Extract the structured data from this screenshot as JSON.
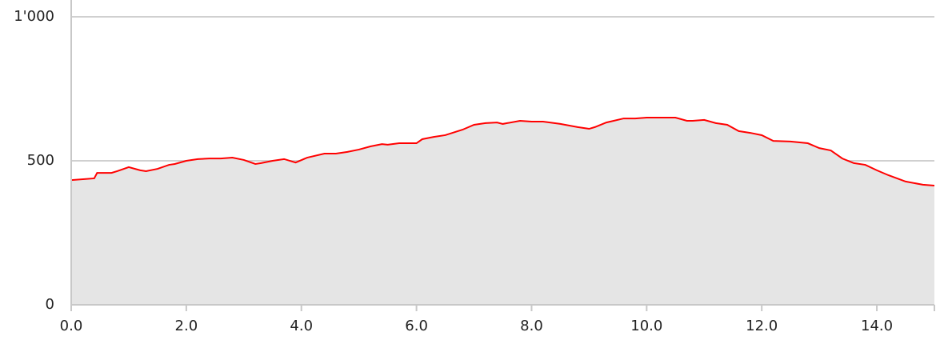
{
  "chart_data": {
    "type": "area",
    "x": [
      0,
      0.4,
      0.45,
      0.7,
      0.8,
      1.0,
      1.2,
      1.3,
      1.5,
      1.7,
      1.8,
      2.0,
      2.2,
      2.4,
      2.6,
      2.8,
      3.0,
      3.2,
      3.3,
      3.5,
      3.7,
      3.9,
      4.1,
      4.4,
      4.6,
      4.8,
      5.0,
      5.2,
      5.4,
      5.5,
      5.7,
      5.9,
      6.0,
      6.1,
      6.3,
      6.5,
      6.8,
      7.0,
      7.2,
      7.4,
      7.5,
      7.8,
      8.0,
      8.2,
      8.5,
      8.8,
      9.0,
      9.1,
      9.3,
      9.6,
      9.8,
      10.0,
      10.3,
      10.5,
      10.7,
      10.8,
      11.0,
      11.2,
      11.4,
      11.6,
      11.8,
      12.0,
      12.2,
      12.5,
      12.8,
      13.0,
      13.2,
      13.4,
      13.6,
      13.8,
      14.0,
      14.2,
      14.5,
      14.8,
      15.0
    ],
    "series": [
      {
        "color": "#ff0000",
        "fill": "#e5e5e5",
        "values": [
          433,
          439,
          458,
          458,
          464,
          478,
          467,
          464,
          472,
          486,
          489,
          500,
          506,
          508,
          508,
          511,
          503,
          489,
          492,
          500,
          506,
          494,
          511,
          525,
          525,
          531,
          539,
          550,
          558,
          556,
          561,
          561,
          561,
          575,
          583,
          589,
          608,
          625,
          631,
          633,
          628,
          639,
          636,
          636,
          628,
          617,
          611,
          617,
          633,
          647,
          647,
          650,
          650,
          650,
          639,
          639,
          642,
          631,
          625,
          603,
          597,
          589,
          569,
          567,
          561,
          544,
          536,
          508,
          492,
          486,
          467,
          450,
          428,
          417,
          414
        ]
      }
    ],
    "xlim": [
      0,
      15
    ],
    "ylim": [
      0,
      1000
    ],
    "xticks": [
      {
        "value": 0,
        "label": "0.0"
      },
      {
        "value": 2,
        "label": "2.0"
      },
      {
        "value": 4,
        "label": "4.0"
      },
      {
        "value": 6,
        "label": "6.0"
      },
      {
        "value": 8,
        "label": "8.0"
      },
      {
        "value": 10,
        "label": "10.0"
      },
      {
        "value": 12,
        "label": "12.0"
      },
      {
        "value": 14,
        "label": "14.0"
      }
    ],
    "yticks": [
      0,
      500,
      {
        "value": 1000,
        "label": "1'000"
      }
    ],
    "grid": true
  }
}
